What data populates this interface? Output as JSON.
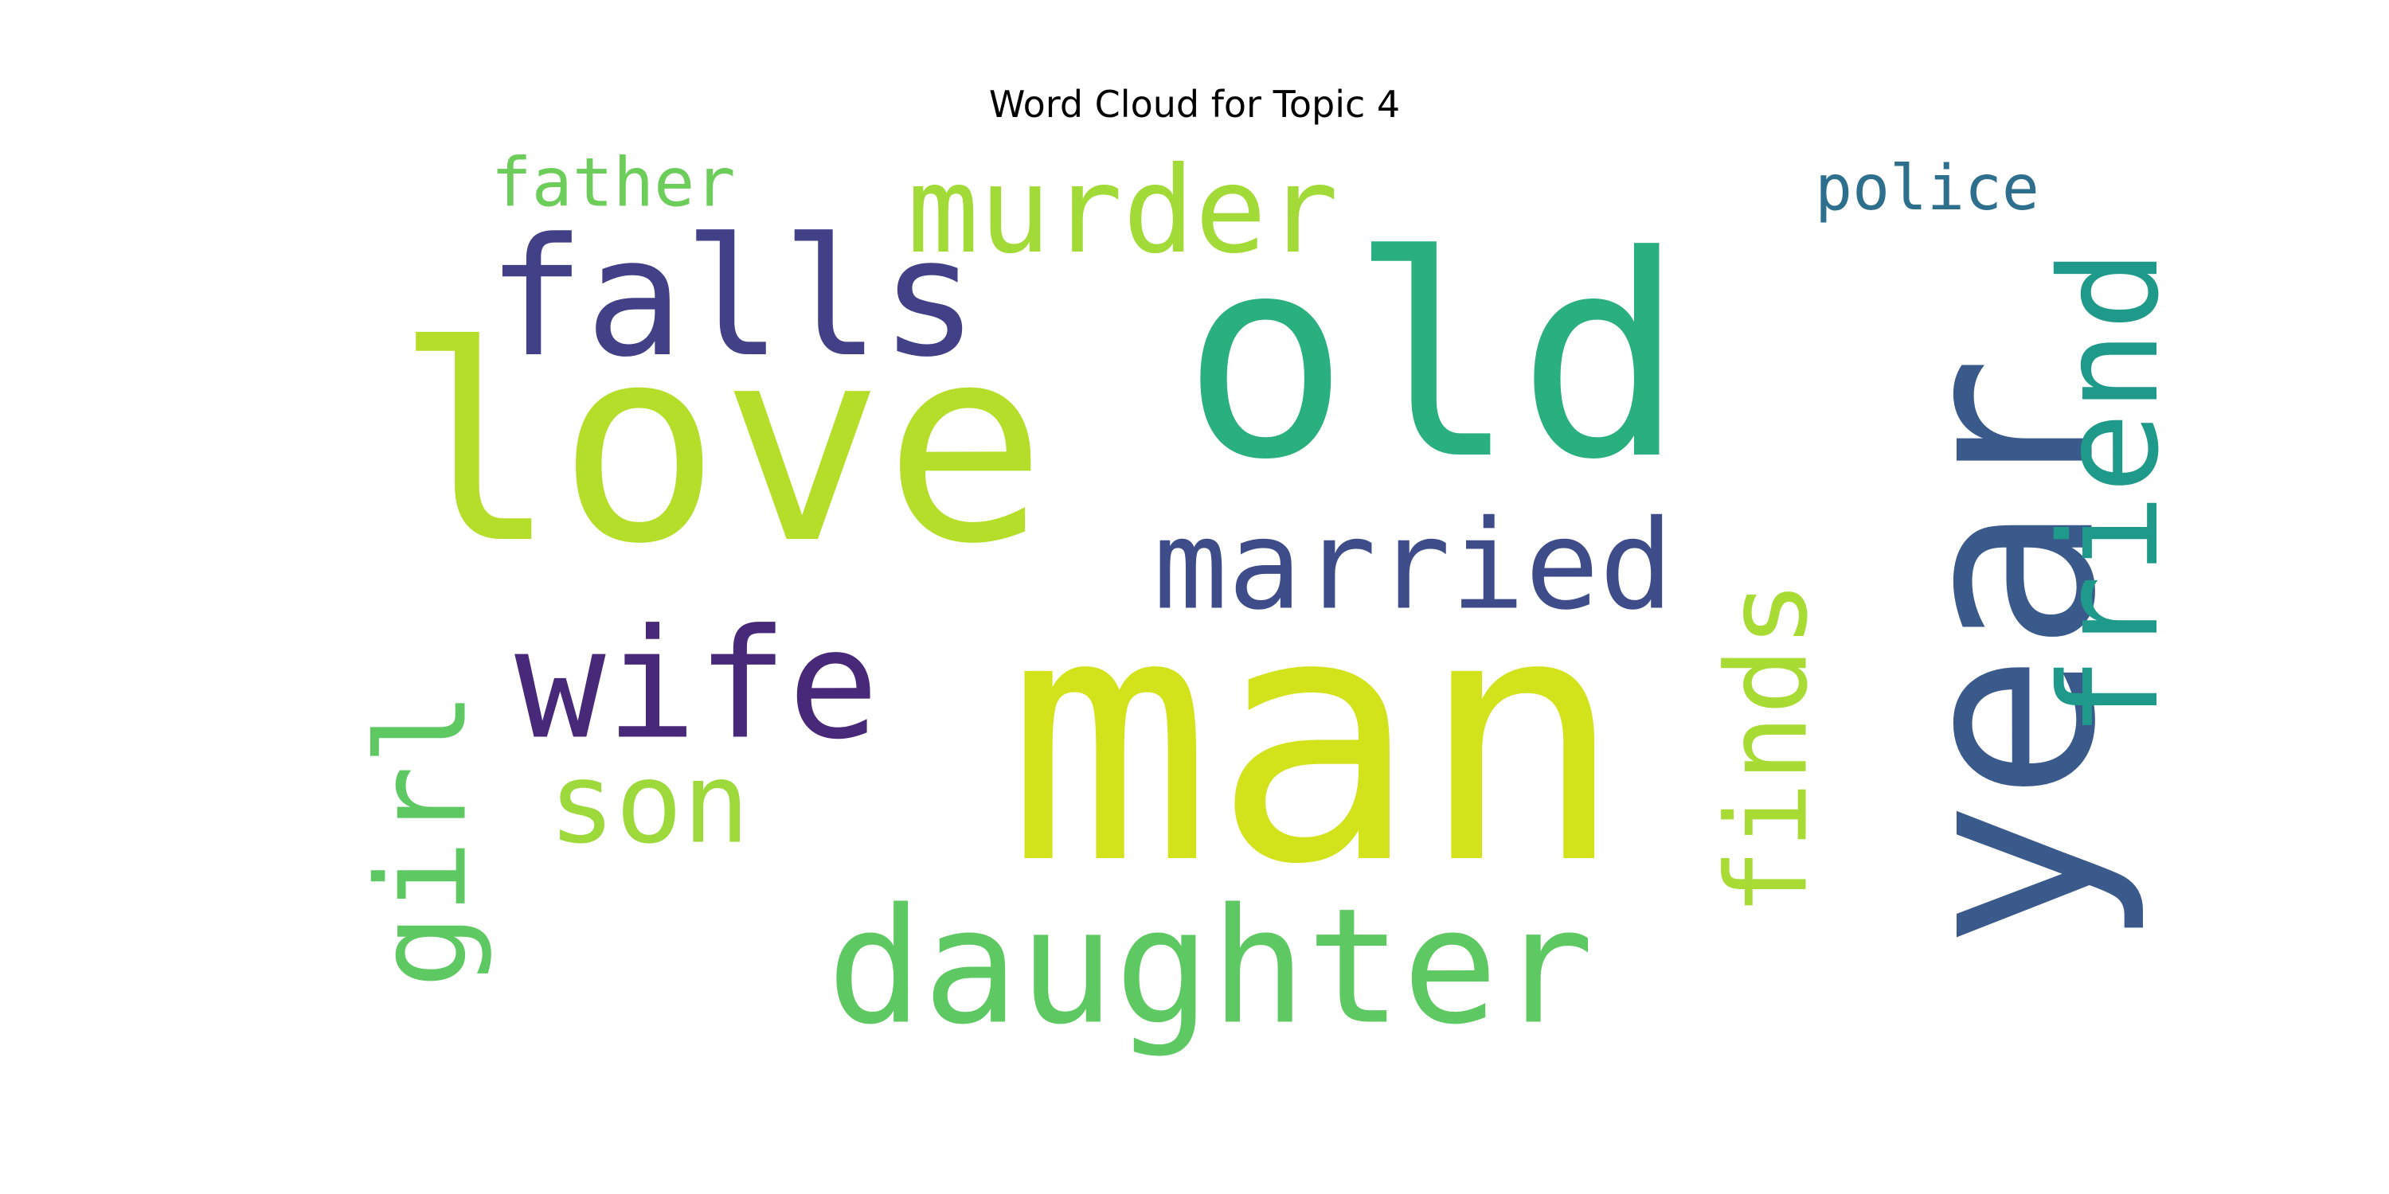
{
  "chart_data": {
    "type": "wordcloud",
    "title": "Word Cloud for Topic 4",
    "words": [
      {
        "text": "man",
        "weight": 1.0,
        "color": "#d2e21b",
        "orientation": "horizontal"
      },
      {
        "text": "old",
        "weight": 0.9,
        "color": "#2ab07f",
        "orientation": "horizontal"
      },
      {
        "text": "love",
        "weight": 0.85,
        "color": "#b5de2b",
        "orientation": "horizontal"
      },
      {
        "text": "year",
        "weight": 0.82,
        "color": "#3b5a8c",
        "orientation": "vertical"
      },
      {
        "text": "falls",
        "weight": 0.5,
        "color": "#424086",
        "orientation": "horizontal"
      },
      {
        "text": "daughter",
        "weight": 0.5,
        "color": "#5ec962",
        "orientation": "horizontal"
      },
      {
        "text": "wife",
        "weight": 0.47,
        "color": "#482878",
        "orientation": "horizontal"
      },
      {
        "text": "friend",
        "weight": 0.44,
        "color": "#1f9a8a",
        "orientation": "vertical"
      },
      {
        "text": "married",
        "weight": 0.4,
        "color": "#3e4c8a",
        "orientation": "horizontal"
      },
      {
        "text": "murder",
        "weight": 0.38,
        "color": "#a2da37",
        "orientation": "horizontal"
      },
      {
        "text": "girl",
        "weight": 0.38,
        "color": "#5ec962",
        "orientation": "vertical"
      },
      {
        "text": "finds",
        "weight": 0.34,
        "color": "#a8db34",
        "orientation": "vertical"
      },
      {
        "text": "son",
        "weight": 0.34,
        "color": "#9dd93b",
        "orientation": "horizontal"
      },
      {
        "text": "father",
        "weight": 0.22,
        "color": "#6ccd5a",
        "orientation": "horizontal"
      },
      {
        "text": "police",
        "weight": 0.22,
        "color": "#2f6f8e",
        "orientation": "horizontal"
      }
    ]
  }
}
